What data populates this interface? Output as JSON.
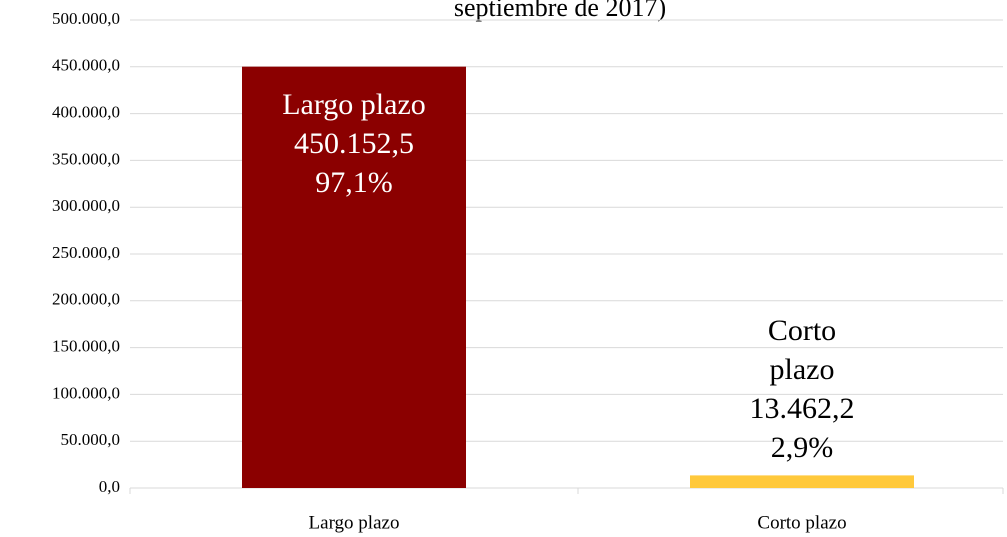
{
  "chart_data": {
    "type": "bar",
    "title": "septiembre de 2017)",
    "categories": [
      "Largo plazo",
      "Corto plazo"
    ],
    "values": [
      450152.5,
      13462.2
    ],
    "value_labels": [
      "450.152,5",
      "13.462,2"
    ],
    "percentages": [
      97.1,
      2.9
    ],
    "percentage_labels": [
      "97,1%",
      "2,9%"
    ],
    "colors": [
      "#8b0000",
      "#ffc93c"
    ],
    "ylim": [
      0,
      500000
    ],
    "yticks": [
      {
        "value": 0,
        "label": "0,0"
      },
      {
        "value": 50000,
        "label": "50.000,0"
      },
      {
        "value": 100000,
        "label": "100.000,0"
      },
      {
        "value": 150000,
        "label": "150.000,0"
      },
      {
        "value": 200000,
        "label": "200.000,0"
      },
      {
        "value": 250000,
        "label": "250.000,0"
      },
      {
        "value": 300000,
        "label": "300.000,0"
      },
      {
        "value": 350000,
        "label": "350.000,0"
      },
      {
        "value": 400000,
        "label": "400.000,0"
      },
      {
        "value": 450000,
        "label": "450.000,0"
      },
      {
        "value": 500000,
        "label": "500.000,0"
      }
    ],
    "grid": true
  }
}
